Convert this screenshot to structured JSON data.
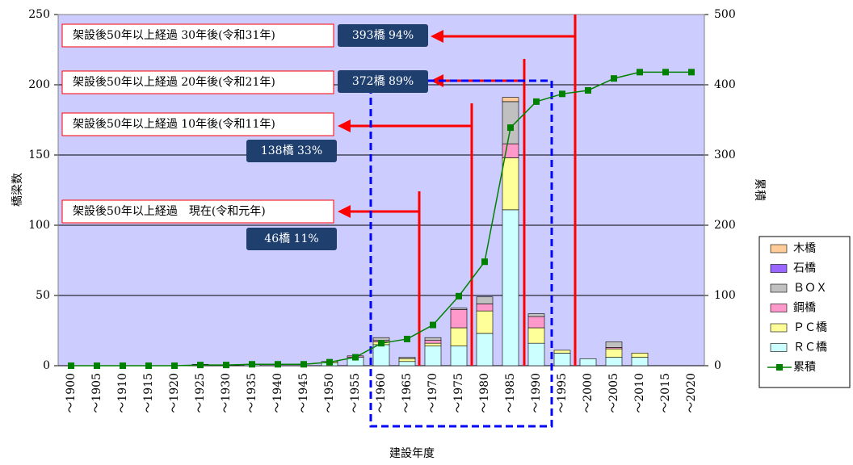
{
  "chart_data": {
    "type": "bar",
    "y_label": "橋梁数",
    "y2_label": "累積",
    "x_label": "建設年度",
    "categories": [
      "～1900",
      "～1905",
      "～1910",
      "～1915",
      "～1920",
      "～1925",
      "～1930",
      "～1935",
      "～1940",
      "～1945",
      "～1950",
      "～1955",
      "～1960",
      "～1965",
      "～1970",
      "～1975",
      "～1980",
      "～1985",
      "～1990",
      "～1995",
      "～2000",
      "～2005",
      "～2010",
      "～2015",
      "～2020"
    ],
    "series": [
      {
        "name": "ＲＣ橋",
        "color": "#ccffff",
        "values": [
          0,
          0,
          0,
          0,
          0,
          1,
          0,
          1,
          0,
          0,
          2,
          6,
          15,
          3,
          14,
          14,
          23,
          111,
          16,
          9,
          5,
          6,
          6,
          0,
          0
        ]
      },
      {
        "name": "ＰＣ橋",
        "color": "#ffff99",
        "values": [
          0,
          0,
          0,
          0,
          0,
          0,
          0,
          0,
          0,
          0,
          1,
          0,
          2,
          2,
          2,
          13,
          16,
          37,
          11,
          2,
          0,
          6,
          3,
          0,
          0
        ]
      },
      {
        "name": "鋼橋",
        "color": "#ff99cc",
        "values": [
          0,
          0,
          0,
          0,
          0,
          0,
          0,
          0,
          0,
          0,
          0,
          1,
          1,
          0,
          2,
          13,
          5,
          10,
          8,
          0,
          0,
          1,
          0,
          0,
          0
        ]
      },
      {
        "name": "ＢＯＸ",
        "color": "#c0c0c0",
        "values": [
          0,
          0,
          0,
          0,
          0,
          0,
          0,
          0,
          0,
          0,
          0,
          0,
          2,
          1,
          2,
          1,
          5,
          30,
          2,
          0,
          0,
          4,
          0,
          0,
          0
        ]
      },
      {
        "name": "石橋",
        "color": "#9966ff",
        "values": [
          0,
          0,
          0,
          0,
          0,
          0,
          0,
          0,
          0,
          0,
          0,
          0,
          0,
          0,
          0,
          0,
          0,
          0,
          0,
          0,
          0,
          0,
          0,
          0,
          0
        ]
      },
      {
        "name": "木橋",
        "color": "#ffcc99",
        "values": [
          0,
          0,
          0,
          0,
          0,
          0,
          0,
          0,
          0,
          0,
          0,
          0,
          0,
          0,
          0,
          0,
          0,
          3,
          0,
          0,
          0,
          0,
          0,
          0,
          0
        ]
      },
      {
        "name": "累積",
        "color": "#008000",
        "type": "line",
        "axis": "y2",
        "values": [
          0,
          0,
          0,
          0,
          0,
          1,
          1,
          2,
          2,
          2,
          5,
          12,
          32,
          38,
          58,
          99,
          148,
          339,
          376,
          387,
          392,
          409,
          418,
          418,
          418
        ]
      }
    ],
    "ylim": [
      0,
      250
    ],
    "yticks": [
      0,
      50,
      100,
      150,
      200,
      250
    ],
    "y2lim": [
      0,
      500
    ],
    "y2ticks": [
      0,
      100,
      200,
      300,
      400,
      500
    ],
    "grid": true,
    "background": "#ccccff",
    "legend": "right",
    "annotations": [
      {
        "text": "架設後50年以上経過 30年後(令和31年)",
        "label": "393橋 94%"
      },
      {
        "text": "架設後50年以上経過 20年後(令和21年)",
        "label": "372橋 89%"
      },
      {
        "text": "架設後50年以上経過 10年後(令和11年)",
        "label": "138橋 33%"
      },
      {
        "text": "架設後50年以上経過　現在(令和元年)",
        "label": "46橋 11%"
      }
    ]
  }
}
